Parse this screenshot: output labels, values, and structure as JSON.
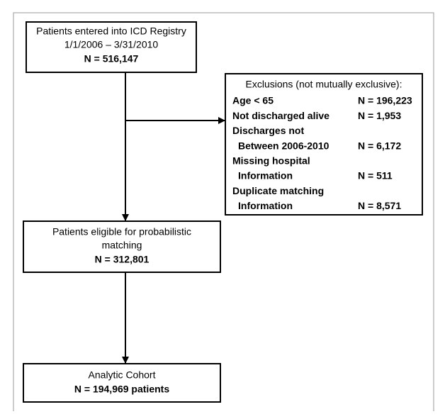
{
  "nodes": [
    {
      "lines": [
        "Patients entered into ICD Registry",
        "1/1/2006 – 3/31/2010",
        "N = 516,147"
      ]
    },
    {
      "lines": [
        "Patients eligible for probabilistic",
        "matching",
        "N = 312,801"
      ]
    },
    {
      "lines": [
        "Analytic Cohort",
        "N = 194,969 patients"
      ]
    }
  ],
  "exclusions": {
    "header": "Exclusions (not mutually exclusive):",
    "items": [
      {
        "label": [
          "Age < 65"
        ],
        "value": "N = 196,223"
      },
      {
        "label": [
          "Not discharged alive"
        ],
        "value": "N = 1,953"
      },
      {
        "label": [
          "Discharges not",
          "Between 2006-2010"
        ],
        "value": "N = 6,172"
      },
      {
        "label": [
          "Missing hospital",
          "Information"
        ],
        "value": "N = 511"
      },
      {
        "label": [
          "Duplicate matching",
          "Information"
        ],
        "value": "N = 8,571"
      }
    ]
  }
}
